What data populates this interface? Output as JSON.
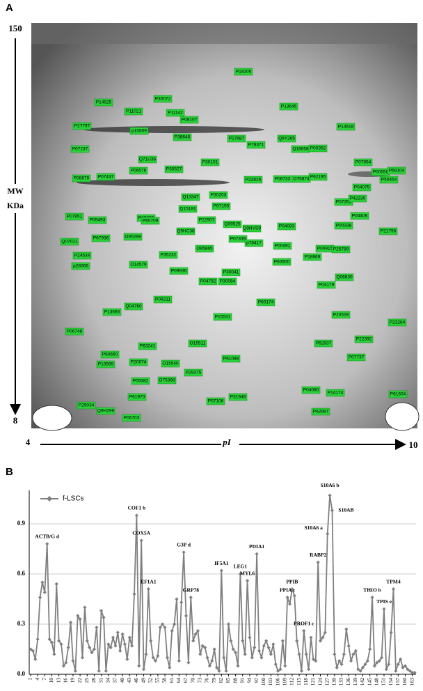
{
  "panel_a": {
    "panel_label": "A",
    "y_top": "150",
    "y_bottom": "8",
    "y_label_1": "MW",
    "y_label_2": "KDa",
    "x_left": "4",
    "x_label": "pI",
    "x_right": "10",
    "labels": [
      "P18206",
      "P14625",
      "P30072",
      "P13645",
      "P11021",
      "P11142",
      "P08107",
      "P27797",
      "P14618",
      "p10809",
      "P38646",
      "Q9Y265",
      "P17987",
      "P78371",
      "P07237",
      "Q16658",
      "P00352",
      "Q71U36",
      "P30101",
      "P07954",
      "P08670",
      "P07437",
      "P06576",
      "P35527",
      "P22626",
      "P06733",
      "O75874",
      "P62195",
      "P00558",
      "P68104",
      "P50454",
      "P04075",
      "P30203",
      "Q13347",
      "P07355",
      "P42330",
      "P07195",
      "Q15181",
      "P07951",
      "P09493",
      "P48036",
      "P04406",
      "P22907",
      "P60709",
      "Q09525",
      "P04083",
      "P00338",
      "P21796",
      "P67936",
      "Q9HC38",
      "Q9NVS9",
      "Q07021",
      "O00299",
      "P07339",
      "p78417",
      "P00491",
      "P00915",
      "P25789",
      "P24534",
      "O95865",
      "P35232",
      "P18669",
      "P60900",
      "p28066",
      "O14579",
      "P30041",
      "P09936",
      "P04792",
      "P30084",
      "Q06830",
      "P04179",
      "P60174",
      "P09211",
      "Q04760",
      "P13693",
      "P15531",
      "P23528",
      "P23284",
      "P06748",
      "P62937",
      "P22392",
      "P63241",
      "O15511",
      "P60660",
      "P07737",
      "P61088",
      "P10599",
      "P20674",
      "O15540",
      "P29375",
      "P09382",
      "O75368",
      "P04080",
      "P14174",
      "P61604",
      "P61970",
      "P07108",
      "P31949",
      "P29034",
      "Q9H299",
      "P06703",
      "P62987"
    ]
  },
  "chart_data": {
    "type": "line",
    "panel_label": "B",
    "x": [
      1,
      2,
      3,
      4,
      5,
      6,
      7,
      8,
      9,
      10,
      11,
      12,
      13,
      14,
      15,
      16,
      17,
      18,
      19,
      20,
      21,
      22,
      23,
      24,
      25,
      26,
      27,
      28,
      29,
      30,
      31,
      32,
      33,
      34,
      35,
      36,
      37,
      38,
      39,
      40,
      41,
      42,
      43,
      44,
      45,
      46,
      47,
      48,
      49,
      50,
      51,
      52,
      53,
      54,
      55,
      56,
      57,
      58,
      59,
      60,
      61,
      62,
      63,
      64,
      65,
      66,
      67,
      68,
      69,
      70,
      71,
      72,
      73,
      74,
      75,
      76,
      77,
      78,
      79,
      80,
      81,
      82,
      83,
      84,
      85,
      86,
      87,
      88,
      89,
      90,
      91,
      92,
      93,
      94,
      95,
      96,
      97,
      98,
      99,
      100,
      101,
      102,
      103,
      104,
      105,
      106,
      107,
      108,
      109,
      110,
      111,
      112,
      113,
      114,
      115,
      116,
      117,
      118,
      119,
      120,
      121,
      122,
      123,
      124,
      125,
      126,
      127,
      128,
      129,
      130,
      131,
      132,
      133,
      134,
      135,
      136,
      137,
      138,
      139,
      140,
      141,
      142,
      143,
      144,
      145,
      146,
      147,
      148,
      149,
      150,
      151,
      152,
      153,
      154,
      155,
      156,
      157,
      158,
      159,
      160,
      161,
      162,
      163,
      164
    ],
    "series": [
      {
        "name": "f-LSCs",
        "color": "#7f7f7f",
        "values": [
          0.15,
          0.14,
          0.09,
          0.21,
          0.46,
          0.55,
          0.49,
          0.78,
          0.21,
          0.19,
          0.12,
          0.54,
          0.2,
          0.18,
          0.05,
          0.07,
          0.16,
          0.31,
          0.08,
          0.02,
          0.35,
          0.33,
          0.1,
          0.4,
          0.2,
          0.16,
          0.13,
          0.15,
          0.28,
          0.02,
          0.38,
          0.34,
          0.02,
          0.18,
          0.16,
          0.22,
          0.17,
          0.25,
          0.14,
          0.24,
          0.18,
          0.09,
          0.22,
          0.17,
          0.48,
          0.95,
          0.05,
          0.8,
          0.03,
          0.12,
          0.51,
          0.2,
          0.1,
          0.08,
          0.11,
          0.28,
          0.3,
          0.28,
          0.1,
          0.04,
          0.26,
          0.3,
          0.45,
          0.08,
          0.43,
          0.73,
          0.35,
          0.07,
          0.46,
          0.2,
          0.24,
          0.26,
          0.12,
          0.17,
          0.16,
          0.1,
          0.05,
          0.08,
          0.15,
          0.04,
          0.02,
          0.62,
          0.1,
          0.02,
          0.3,
          0.2,
          0.15,
          0.13,
          0.05,
          0.6,
          0.2,
          0.12,
          0.56,
          0.22,
          0.1,
          0.16,
          0.72,
          0.14,
          0.1,
          0.17,
          0.2,
          0.16,
          0.12,
          0.18,
          0.06,
          0.02,
          0.03,
          0.2,
          0.05,
          0.46,
          0.42,
          0.51,
          0.47,
          0.2,
          0.12,
          0.02,
          0.26,
          0.12,
          0.03,
          0.22,
          0.09,
          0.08,
          0.67,
          0.2,
          0.22,
          0.25,
          0.84,
          1.07,
          0.98,
          0.12,
          0.04,
          0.08,
          0.06,
          0.12,
          0.27,
          0.17,
          0.08,
          0.12,
          0.14,
          0.03,
          0.02,
          0.04,
          0.06,
          0.08,
          0.15,
          0.46,
          0.05,
          0.07,
          0.08,
          0.1,
          0.39,
          0.03,
          0.06,
          0.25,
          0.51,
          0.02,
          0.06,
          0.09,
          0.04,
          0.05,
          0.03,
          0.02,
          0.01,
          0.01
        ]
      }
    ],
    "xlim": [
      1,
      164
    ],
    "xticks": [
      1,
      4,
      7,
      10,
      13,
      16,
      19,
      22,
      25,
      28,
      31,
      34,
      37,
      40,
      43,
      46,
      49,
      52,
      55,
      58,
      61,
      64,
      67,
      70,
      73,
      76,
      79,
      82,
      85,
      88,
      91,
      94,
      97,
      100,
      103,
      106,
      109,
      112,
      115,
      118,
      121,
      124,
      127,
      130,
      133,
      136,
      139,
      142,
      145,
      148,
      151,
      154,
      157,
      160,
      163
    ],
    "ylim": [
      0,
      1.1
    ],
    "yticks": [
      {
        "value": 0,
        "label": "0.0"
      },
      0.3,
      0.6,
      0.9
    ],
    "grid": true,
    "legend": "top-left",
    "annotations": [
      {
        "text": "ACTB/G d",
        "x": 8
      },
      {
        "text": "COF1 b",
        "x": 46
      },
      {
        "text": "COX5A",
        "x": 48
      },
      {
        "text": "EF1A1",
        "x": 51
      },
      {
        "text": "G3P d",
        "x": 66
      },
      {
        "text": "GRP78",
        "x": 69
      },
      {
        "text": "IF5A1",
        "x": 82
      },
      {
        "text": "LEG1",
        "x": 90
      },
      {
        "text": "MYL6",
        "x": 93
      },
      {
        "text": "PDIA1",
        "x": 97
      },
      {
        "text": "PPIA c",
        "x": 110
      },
      {
        "text": "PPIB",
        "x": 112
      },
      {
        "text": "PROF1 c",
        "x": 117
      },
      {
        "text": "RABP2",
        "x": 123
      },
      {
        "text": "S10A6 a",
        "x": 127
      },
      {
        "text": "S10A6 b",
        "x": 128
      },
      {
        "text": "S10AB",
        "x": 129
      },
      {
        "text": "THIO b",
        "x": 146
      },
      {
        "text": "TPIS e",
        "x": 151
      },
      {
        "text": "TPM4",
        "x": 155
      }
    ]
  }
}
